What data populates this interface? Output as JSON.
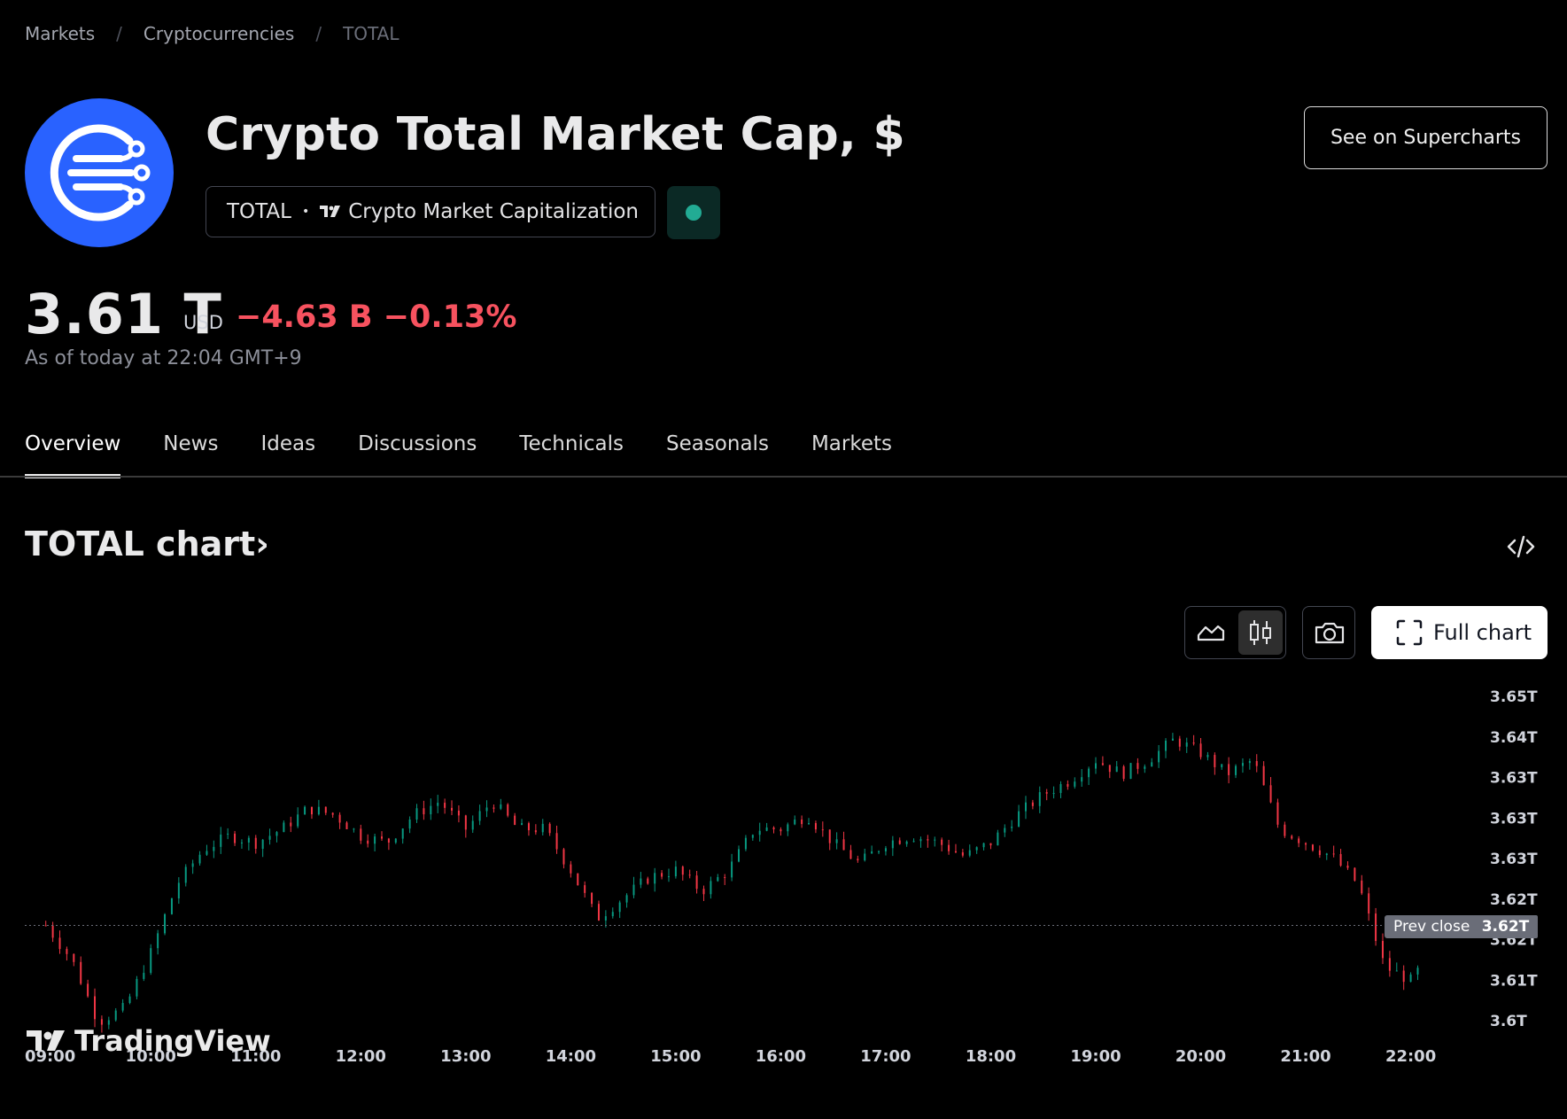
{
  "breadcrumb": {
    "items": [
      "Markets",
      "Cryptocurrencies",
      "TOTAL"
    ],
    "separator": "/"
  },
  "symbol": {
    "title": "Crypto Total Market Cap, $",
    "ticker": "TOTAL",
    "bullet": "•",
    "source": "Crypto Market Capitalization",
    "status_color": "#22ab94",
    "logo_color": "#2962ff"
  },
  "actions": {
    "supercharts_label": "See on Supercharts"
  },
  "quote": {
    "price": "3.61 T",
    "currency": "USD",
    "change": "−4.63 B −0.13%",
    "change_color": "#f7525f",
    "as_of": "As of today at 22:04 GMT+9"
  },
  "tabs": [
    "Overview",
    "News",
    "Ideas",
    "Discussions",
    "Technicals",
    "Seasonals",
    "Markets"
  ],
  "active_tab": "Overview",
  "chart_section": {
    "heading": "TOTAL chart",
    "heading_chevron": "›",
    "full_chart_label": "Full chart",
    "watermark": "TradingView"
  },
  "chart_data": {
    "type": "candlestick",
    "interval": "intraday",
    "x_ticks": [
      "09:00",
      "10:00",
      "11:00",
      "12:00",
      "13:00",
      "14:00",
      "15:00",
      "16:00",
      "17:00",
      "18:00",
      "19:00",
      "20:00",
      "21:00",
      "22:00"
    ],
    "y_tick_labels": [
      "3.65T",
      "3.64T",
      "3.63T",
      "3.63T",
      "3.63T",
      "3.62T",
      "3.62T",
      "3.61T",
      "3.6T"
    ],
    "y_range_trillions": [
      3.6,
      3.65
    ],
    "prev_close": {
      "label": "Prev close",
      "value_label": "3.62T",
      "value": 3.618
    },
    "up_color": "#089981",
    "down_color": "#f23645",
    "path_values_trillions": [
      [
        9.0,
        3.618
      ],
      [
        9.25,
        3.613
      ],
      [
        9.5,
        3.604
      ],
      [
        9.75,
        3.606
      ],
      [
        10.0,
        3.614
      ],
      [
        10.25,
        3.624
      ],
      [
        10.5,
        3.629
      ],
      [
        10.75,
        3.631
      ],
      [
        11.0,
        3.63
      ],
      [
        11.25,
        3.632
      ],
      [
        11.5,
        3.635
      ],
      [
        11.75,
        3.634
      ],
      [
        12.0,
        3.631
      ],
      [
        12.25,
        3.63
      ],
      [
        12.5,
        3.634
      ],
      [
        12.75,
        3.636
      ],
      [
        13.0,
        3.632
      ],
      [
        13.25,
        3.636
      ],
      [
        13.5,
        3.632
      ],
      [
        13.75,
        3.632
      ],
      [
        14.0,
        3.626
      ],
      [
        14.25,
        3.619
      ],
      [
        14.5,
        3.622
      ],
      [
        14.75,
        3.625
      ],
      [
        15.0,
        3.626
      ],
      [
        15.25,
        3.623
      ],
      [
        15.5,
        3.626
      ],
      [
        15.75,
        3.632
      ],
      [
        16.0,
        3.632
      ],
      [
        16.25,
        3.634
      ],
      [
        16.5,
        3.63
      ],
      [
        16.75,
        3.627
      ],
      [
        17.0,
        3.63
      ],
      [
        17.25,
        3.631
      ],
      [
        17.5,
        3.63
      ],
      [
        17.75,
        3.628
      ],
      [
        18.0,
        3.63
      ],
      [
        18.25,
        3.634
      ],
      [
        18.5,
        3.637
      ],
      [
        18.75,
        3.639
      ],
      [
        19.0,
        3.642
      ],
      [
        19.25,
        3.64
      ],
      [
        19.5,
        3.642
      ],
      [
        19.75,
        3.645
      ],
      [
        20.0,
        3.643
      ],
      [
        20.25,
        3.64
      ],
      [
        20.5,
        3.642
      ],
      [
        20.75,
        3.632
      ],
      [
        21.0,
        3.63
      ],
      [
        21.25,
        3.628
      ],
      [
        21.5,
        3.624
      ],
      [
        21.75,
        3.612
      ],
      [
        22.0,
        3.61
      ],
      [
        22.1,
        3.612
      ]
    ]
  }
}
